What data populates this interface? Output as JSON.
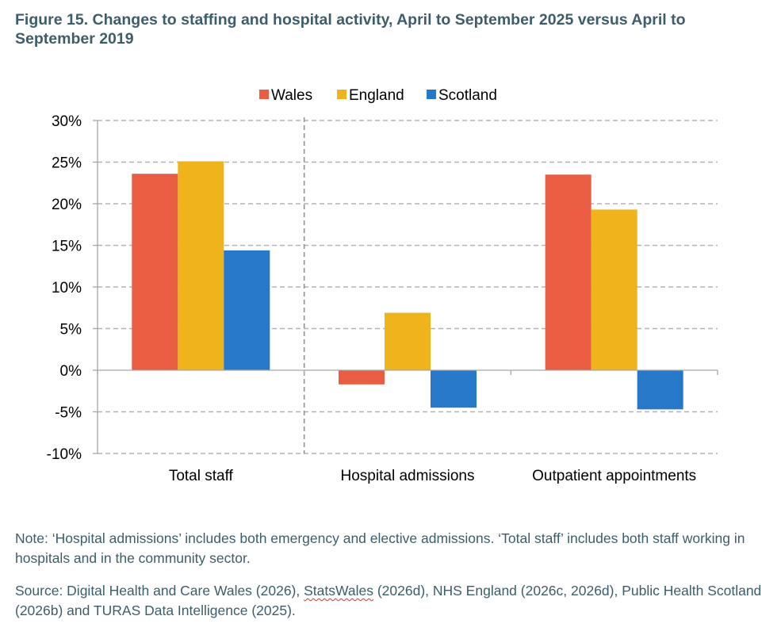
{
  "figure": {
    "title": "Figure 15. Changes to staffing and hospital activity, April to September 2025 versus April to September 2019"
  },
  "chart_data": {
    "type": "bar",
    "title": "",
    "xlabel": "",
    "ylabel": "",
    "categories": [
      "Total staff",
      "Hospital admissions",
      "Outpatient appointments"
    ],
    "series": [
      {
        "name": "Wales",
        "color": "#e95d43",
        "values": [
          23.6,
          -1.7,
          23.5
        ]
      },
      {
        "name": "England",
        "color": "#efb41c",
        "values": [
          25.1,
          6.9,
          19.3
        ]
      },
      {
        "name": "Scotland",
        "color": "#2878c9",
        "values": [
          14.4,
          -4.5,
          -4.7
        ]
      }
    ],
    "ylim": [
      -10,
      30
    ],
    "yticks": [
      30,
      25,
      20,
      15,
      10,
      5,
      0,
      -5,
      -10
    ],
    "ytick_labels": [
      "30%",
      "25%",
      "20%",
      "15%",
      "10%",
      "5%",
      "0%",
      "-5%",
      "-10%"
    ],
    "grid": true,
    "legend_position": "top-center"
  },
  "notes": {
    "note": "Note: ‘Hospital admissions’ includes both emergency and elective admissions. ‘Total staff’ includes both staff working in hospitals and in the community sector.",
    "source_prefix": "Source: Digital Health and Care Wales (2026), ",
    "source_statswales": "StatsWales",
    "source_suffix": " (2026d), NHS England (2026c, 2026d), Public Health Scotland (2026b) and TURAS Data Intelligence (2025)."
  }
}
